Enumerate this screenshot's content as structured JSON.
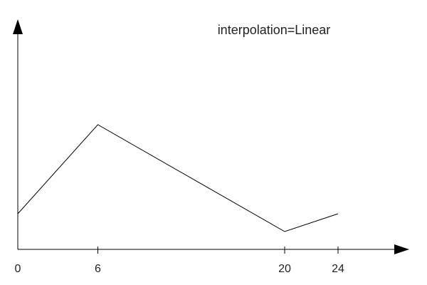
{
  "chart_data": {
    "type": "line",
    "annotation": "interpolation=Linear",
    "x_ticks": [
      "0",
      "6",
      "20",
      "24"
    ],
    "x": [
      0,
      6,
      20,
      24
    ],
    "values": [
      2,
      7,
      1,
      2
    ],
    "xlim": [
      0,
      24
    ],
    "ylim": [
      0,
      8
    ],
    "grid": false,
    "line_color": "#000000"
  }
}
